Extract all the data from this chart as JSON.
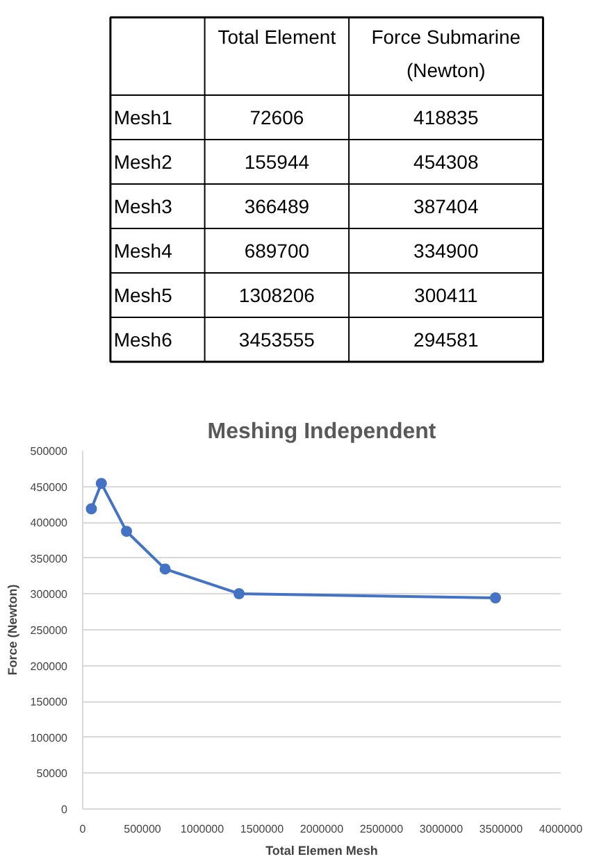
{
  "chart_data": [
    {
      "type": "other",
      "data_labels": true,
      "categories": [
        "Mesh1",
        "Mesh2",
        "Mesh3",
        "Mesh4",
        "Mesh5",
        "Mesh6"
      ],
      "series": [
        {
          "name": "Total Element",
          "color": "#000000",
          "values": [
            72606,
            155944,
            366489,
            689700,
            1308206,
            3453555
          ]
        },
        {
          "name": "Force Submarine (Newton)",
          "color": "#000000",
          "values": [
            418835,
            454308,
            387404,
            334900,
            300411,
            294581
          ]
        }
      ]
    },
    {
      "type": "line",
      "title": "Meshing Independent",
      "xlabel": "Total Elemen Mesh",
      "ylabel": "Force (Newton)",
      "x": [
        72606,
        155944,
        366489,
        689700,
        1308206,
        3453555
      ],
      "series": [
        {
          "color": "#4472c4",
          "values": [
            418835,
            454308,
            387404,
            334900,
            300411,
            294581
          ]
        }
      ],
      "xlim": [
        0,
        4000000
      ],
      "xticks": [
        0,
        500000,
        1000000,
        1500000,
        2000000,
        2500000,
        3000000,
        3500000,
        4000000
      ],
      "ylim": [
        0,
        500000
      ],
      "yticks": [
        0,
        50000,
        100000,
        150000,
        200000,
        250000,
        300000,
        350000,
        400000,
        450000,
        500000
      ],
      "grid": "y",
      "marker": "circle",
      "line_style": "solid"
    }
  ]
}
